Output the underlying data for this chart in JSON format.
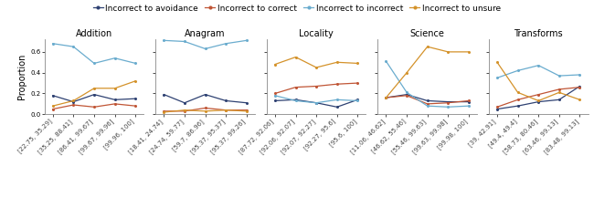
{
  "title_fontsize": 7,
  "legend_fontsize": 6.5,
  "tick_fontsize": 5.0,
  "ylabel": "Proportion",
  "ylabel_fontsize": 7,
  "subplots": [
    {
      "title": "Addition",
      "xticks": [
        "[22.75, 35.29]",
        "[35.25, 88.41]",
        "[86.41, 99.67]",
        "[99.67, 99.96]",
        "[99.96, 100]"
      ],
      "avoidance": [
        0.18,
        0.12,
        0.19,
        0.14,
        0.15
      ],
      "correct": [
        0.05,
        0.09,
        0.07,
        0.1,
        0.08
      ],
      "incorrect": [
        0.68,
        0.65,
        0.49,
        0.54,
        0.49
      ],
      "unsure": [
        0.08,
        0.13,
        0.25,
        0.25,
        0.32
      ]
    },
    {
      "title": "Anagram",
      "xticks": [
        "[18.41, 24.74]",
        "[24.74, 59.77]",
        "[59.7, 86.96]",
        "[95.37, 95.37]",
        "[95.37, 99.26]"
      ],
      "avoidance": [
        0.19,
        0.11,
        0.19,
        0.13,
        0.11
      ],
      "correct": [
        0.03,
        0.03,
        0.06,
        0.04,
        0.04
      ],
      "incorrect": [
        0.71,
        0.7,
        0.63,
        0.68,
        0.71
      ],
      "unsure": [
        0.02,
        0.04,
        0.03,
        0.04,
        0.03
      ]
    },
    {
      "title": "Locality",
      "xticks": [
        "[87.72, 92.06]",
        "[92.06, 92.07]",
        "[92.07, 92.27]",
        "[92.27, 95.6]",
        "[95.6, 100]"
      ],
      "avoidance": [
        0.13,
        0.14,
        0.11,
        0.07,
        0.14
      ],
      "correct": [
        0.2,
        0.26,
        0.27,
        0.29,
        0.3
      ],
      "incorrect": [
        0.18,
        0.13,
        0.11,
        0.14,
        0.13
      ],
      "unsure": [
        0.48,
        0.55,
        0.45,
        0.5,
        0.49
      ]
    },
    {
      "title": "Science",
      "xticks": [
        "[11.06, 46.62]",
        "[46.62, 55.46]",
        "[55.46, 99.63]",
        "[99.63, 99.98]",
        "[99.98, 100]"
      ],
      "avoidance": [
        0.16,
        0.19,
        0.13,
        0.12,
        0.12
      ],
      "correct": [
        0.16,
        0.18,
        0.1,
        0.11,
        0.13
      ],
      "incorrect": [
        0.51,
        0.21,
        0.08,
        0.07,
        0.08
      ],
      "unsure": [
        0.16,
        0.4,
        0.65,
        0.6,
        0.6
      ]
    },
    {
      "title": "Transforms",
      "xticks": [
        "[39, 42.91]",
        "[49.4, 49.4]",
        "[58.73, 80.46]",
        "[63.46, 99.13]",
        "[83.48, 99.13]"
      ],
      "avoidance": [
        0.05,
        0.08,
        0.12,
        0.14,
        0.27
      ],
      "correct": [
        0.07,
        0.14,
        0.19,
        0.24,
        0.26
      ],
      "incorrect": [
        0.35,
        0.42,
        0.47,
        0.37,
        0.38
      ],
      "unsure": [
        0.5,
        0.21,
        0.13,
        0.21,
        0.14
      ]
    }
  ],
  "colors": {
    "avoidance": "#2e4172",
    "correct": "#c05535",
    "incorrect": "#6aacce",
    "unsure": "#d4922a"
  },
  "ylim": [
    0,
    0.72
  ],
  "yticks": [
    0.0,
    0.2,
    0.4,
    0.6
  ],
  "background_color": "#ffffff"
}
